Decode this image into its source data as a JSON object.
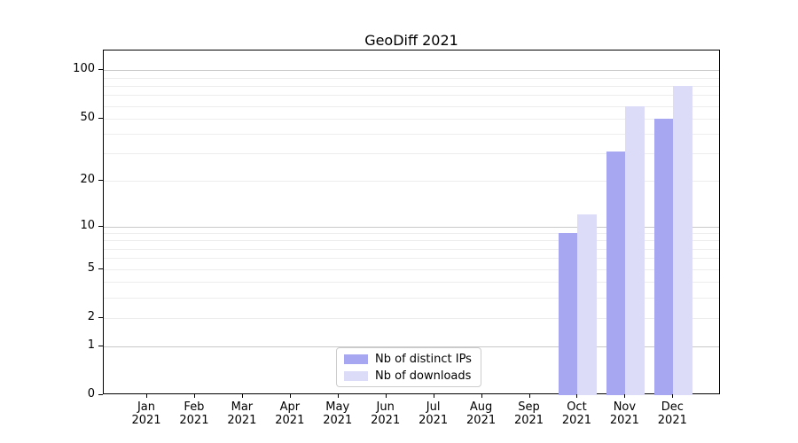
{
  "title": "GeoDiff 2021",
  "chart_data": {
    "type": "bar",
    "title": "GeoDiff 2021",
    "categories": [
      "Jan 2021",
      "Feb 2021",
      "Mar 2021",
      "Apr 2021",
      "May 2021",
      "Jun 2021",
      "Jul 2021",
      "Aug 2021",
      "Sep 2021",
      "Oct 2021",
      "Nov 2021",
      "Dec 2021"
    ],
    "series": [
      {
        "name": "Nb of distinct IPs",
        "color": "#a6a6f1",
        "values": [
          0,
          0,
          0,
          0,
          0,
          0,
          0,
          0,
          0,
          9,
          31,
          50
        ]
      },
      {
        "name": "Nb of downloads",
        "color": "#dcdcf8",
        "values": [
          0,
          0,
          0,
          0,
          0,
          0,
          0,
          0,
          0,
          12,
          60,
          80
        ]
      }
    ],
    "xlabel": "",
    "ylabel": "",
    "yscale": "log1p",
    "ylim": [
      0,
      133
    ],
    "y_ticks": [
      0,
      1,
      2,
      5,
      10,
      20,
      50,
      100
    ],
    "major_gridlines": [
      1,
      10,
      100
    ],
    "minor_gridlines": [
      2,
      3,
      4,
      5,
      6,
      7,
      8,
      9,
      20,
      30,
      40,
      50,
      60,
      70,
      80,
      90
    ],
    "grid": "on",
    "legend_position": "lower center"
  },
  "colors": {
    "major_grid": "#c9c9c9",
    "minor_grid": "#ededed",
    "axis": "#000000",
    "background": "#ffffff"
  }
}
